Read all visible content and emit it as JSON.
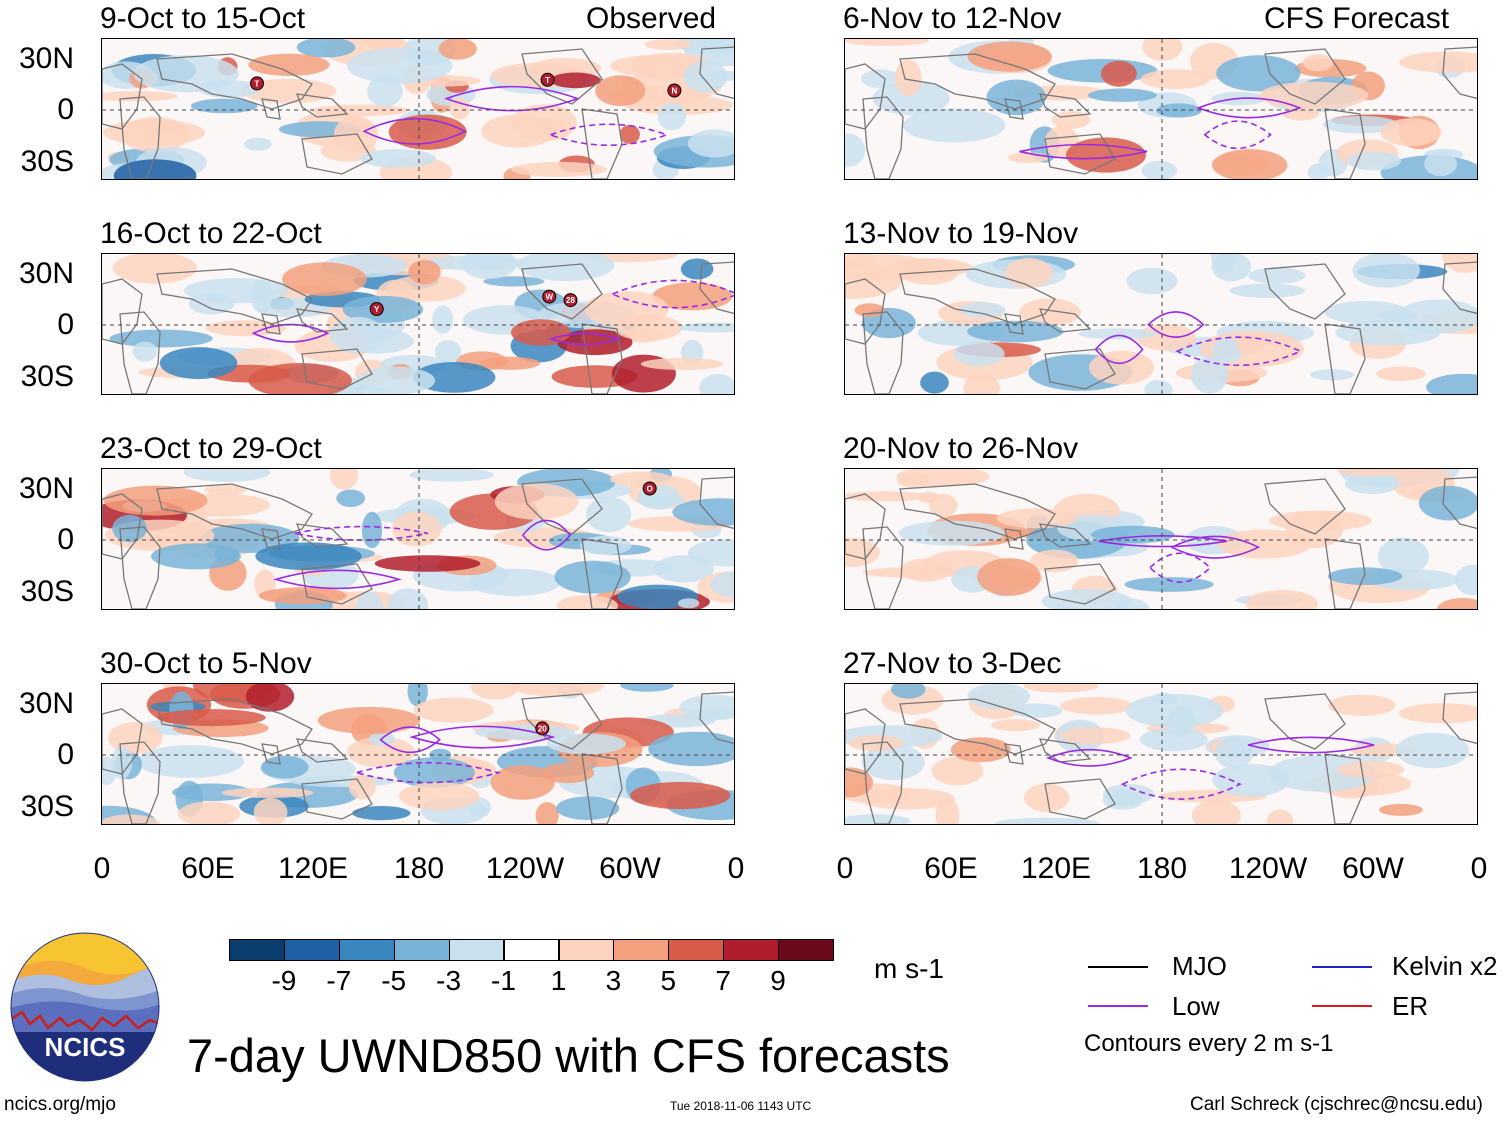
{
  "left_panel_titles": [
    "9-Oct to 15-Oct",
    "16-Oct to 22-Oct",
    "23-Oct to 29-Oct",
    "30-Oct to 5-Nov"
  ],
  "right_panel_titles": [
    "6-Nov to 12-Nov",
    "13-Nov to 19-Nov",
    "20-Nov to 26-Nov",
    "27-Nov to 3-Dec"
  ],
  "left_column_label": "Observed",
  "right_column_label": "CFS Forecast",
  "y_ticks": [
    "30N",
    "0",
    "30S"
  ],
  "x_ticks": [
    "0",
    "60E",
    "120E",
    "180",
    "120W",
    "60W",
    "0"
  ],
  "storms": [
    {
      "panel": 0,
      "label": "T",
      "lon": 88,
      "lat": 15
    },
    {
      "panel": 0,
      "label": "T",
      "lon": 253,
      "lat": 17
    },
    {
      "panel": 0,
      "label": "N",
      "lon": 325,
      "lat": 11
    },
    {
      "panel": 1,
      "label": "Y",
      "lon": 156,
      "lat": 9
    },
    {
      "panel": 1,
      "label": "W",
      "lon": 254,
      "lat": 16
    },
    {
      "panel": 1,
      "label": "28",
      "lon": 266,
      "lat": 14
    },
    {
      "panel": 2,
      "label": "O",
      "lon": 311,
      "lat": 29
    },
    {
      "panel": 3,
      "label": "20",
      "lon": 250,
      "lat": 15
    }
  ],
  "colorbar": {
    "ticks": [
      "-9",
      "-7",
      "-5",
      "-3",
      "-1",
      "1",
      "3",
      "5",
      "7",
      "9"
    ],
    "colors": [
      "#0b3e6e",
      "#1f5fa3",
      "#3a87bf",
      "#79b4d8",
      "#c9e1ee",
      "#ffffff",
      "#fdd3c0",
      "#f3a07e",
      "#d85b4a",
      "#b01e2d",
      "#6b0a1a"
    ],
    "units": "m s-1"
  },
  "legend": {
    "items": [
      {
        "label": "MJO",
        "color": "#000000"
      },
      {
        "label": "Kelvin x2",
        "color": "#2222cc"
      },
      {
        "label": "Low",
        "color": "#9a2be2"
      },
      {
        "label": "ER",
        "color": "#d91a1a"
      }
    ],
    "note": "Contours every 2 m s-1"
  },
  "main_title": "7-day UWND850 with CFS forecasts",
  "logo_text": "NCICS",
  "footer": {
    "url": "ncics.org/mjo",
    "timestamp": "Tue 2018-11-06 1143 UTC",
    "credit": "Carl Schreck (cjschrec@ncsu.edu)"
  }
}
